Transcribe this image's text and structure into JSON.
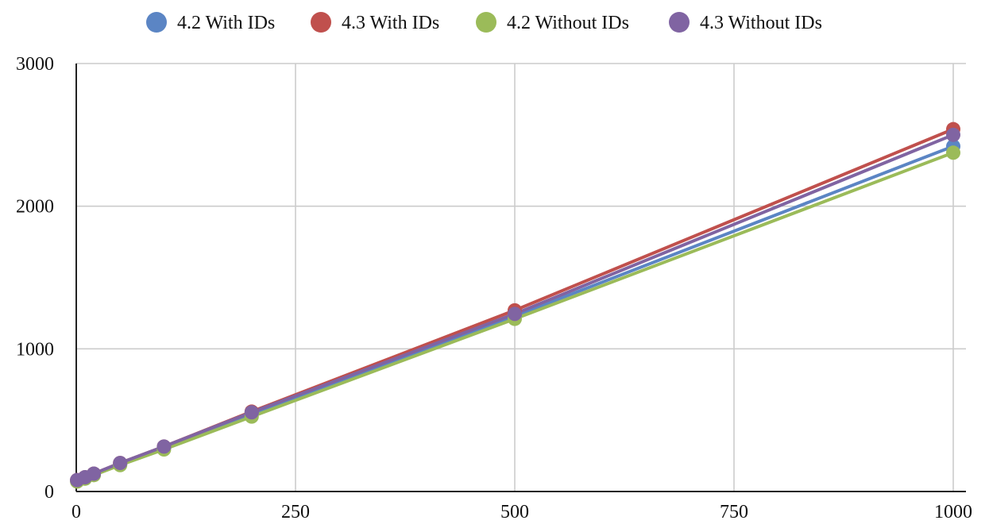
{
  "chart_data": {
    "type": "line",
    "title": "",
    "xlabel": "",
    "ylabel": "",
    "xlim": [
      0,
      1000
    ],
    "ylim": [
      0,
      3000
    ],
    "x_ticks": [
      0,
      250,
      500,
      750,
      1000
    ],
    "y_ticks": [
      0,
      1000,
      2000,
      3000
    ],
    "x_tick_labels": [
      "0",
      "250",
      "500",
      "750",
      "1000"
    ],
    "y_tick_labels": [
      "0",
      "1000",
      "2000",
      "3000"
    ],
    "grid": true,
    "legend_position": "top-center",
    "x": [
      1,
      10,
      20,
      50,
      100,
      200,
      500,
      1000
    ],
    "series": [
      {
        "name": "4.2 With IDs",
        "color": "#5b85c4",
        "values": [
          75,
          95,
          120,
          190,
          305,
          545,
          1230,
          2420
        ]
      },
      {
        "name": "4.3 With IDs",
        "color": "#c0504d",
        "values": [
          80,
          100,
          125,
          200,
          315,
          560,
          1270,
          2540
        ]
      },
      {
        "name": "4.2 Without IDs",
        "color": "#9bbb59",
        "values": [
          70,
          90,
          115,
          185,
          295,
          525,
          1210,
          2375
        ]
      },
      {
        "name": "4.3 Without IDs",
        "color": "#8064a2",
        "values": [
          80,
          100,
          125,
          200,
          315,
          555,
          1245,
          2500
        ]
      }
    ]
  }
}
